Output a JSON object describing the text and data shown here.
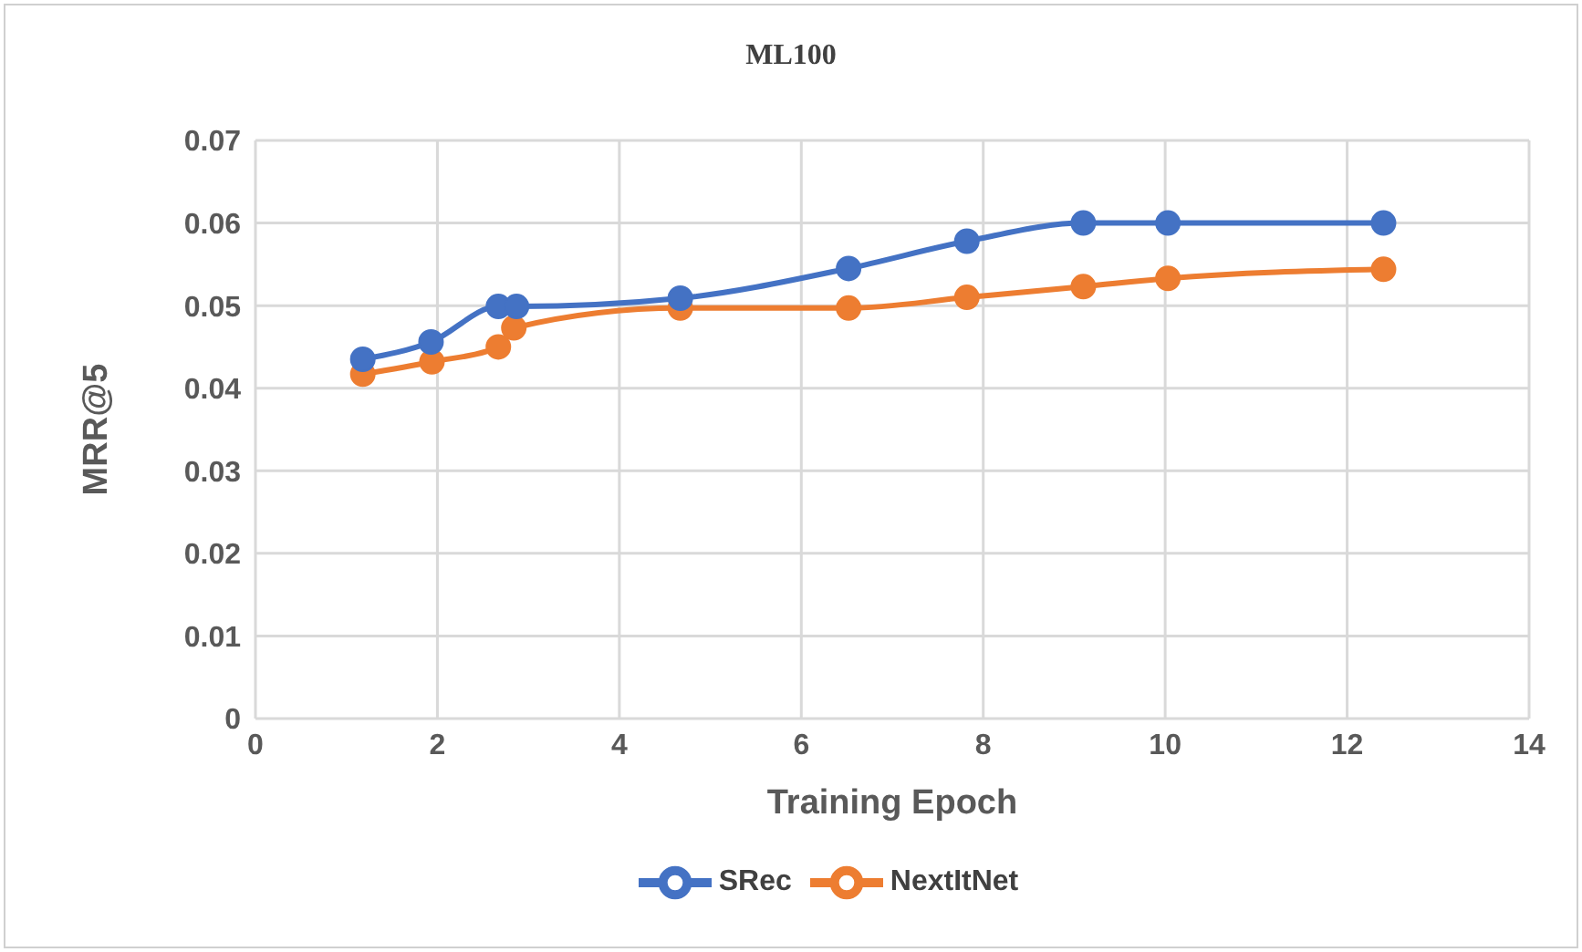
{
  "chart_data": {
    "type": "line",
    "title": "ML100",
    "xlabel": "Training Epoch",
    "ylabel": "MRR@5",
    "xlim": [
      0,
      14
    ],
    "xticks": [
      0,
      2,
      4,
      6,
      8,
      10,
      12,
      14
    ],
    "ylim": [
      0,
      0.07
    ],
    "yticks": [
      0,
      0.01,
      0.02,
      0.03,
      0.04,
      0.05,
      0.06,
      0.07
    ],
    "grid": true,
    "legend": "bottom",
    "marker": "circle",
    "line_style": "solid",
    "series": [
      {
        "name": "SRec",
        "color": "#4472c4",
        "x": [
          1.18,
          1.93,
          2.67,
          2.87,
          4.67,
          6.52,
          7.82,
          9.1,
          10.03,
          12.4
        ],
        "values": [
          0.0435,
          0.0456,
          0.0499,
          0.0499,
          0.0509,
          0.0545,
          0.0578,
          0.06,
          0.06,
          0.06
        ]
      },
      {
        "name": "NextItNet",
        "color": "#ed7d31",
        "x": [
          1.18,
          1.94,
          2.67,
          2.84,
          4.67,
          6.52,
          7.82,
          9.1,
          10.03,
          12.4
        ],
        "values": [
          0.0417,
          0.0432,
          0.045,
          0.0473,
          0.0497,
          0.0497,
          0.051,
          0.0523,
          0.0533,
          0.0544
        ]
      }
    ]
  }
}
